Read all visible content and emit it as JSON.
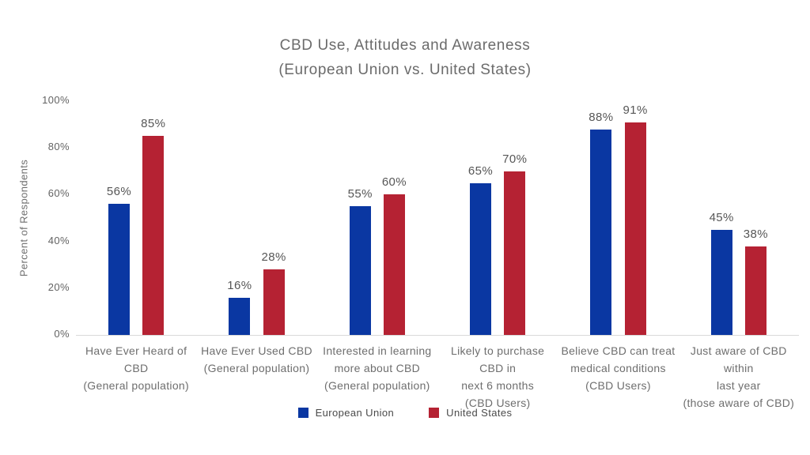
{
  "chart": {
    "title_line1": "CBD Use, Attitudes and Awareness",
    "title_line2": "(European Union vs. United States)",
    "y_axis_title": "Percent of Respondents"
  },
  "colors": {
    "eu_blue": "#0a37a2",
    "us_red": "#b52233",
    "axis_text": "#636363",
    "baseline": "#d9d9d9"
  },
  "chart_data": {
    "type": "bar",
    "title": "CBD Use, Attitudes and Awareness (European Union vs. United States)",
    "xlabel": "",
    "ylabel": "Percent of Respondents",
    "ylim": [
      0,
      100
    ],
    "grid": false,
    "legend_position": "bottom",
    "y_ticks": [
      "0%",
      "20%",
      "40%",
      "60%",
      "80%",
      "100%"
    ],
    "value_suffix": "%",
    "categories": [
      [
        "Have Ever Heard of CBD",
        "(General population)"
      ],
      [
        "Have Ever Used CBD",
        "(General population)"
      ],
      [
        "Interested in learning",
        "more about CBD",
        "(General population)"
      ],
      [
        "Likely to purchase CBD in",
        "next 6 months",
        "(CBD Users)"
      ],
      [
        "Believe CBD can treat",
        "medical conditions",
        "(CBD Users)"
      ],
      [
        "Just aware of CBD within",
        "last year",
        "(those aware of CBD)"
      ]
    ],
    "series": [
      {
        "name": "European Union",
        "color": "#0a37a2",
        "values": [
          56,
          16,
          55,
          65,
          88,
          45
        ]
      },
      {
        "name": "United States",
        "color": "#b52233",
        "values": [
          85,
          28,
          60,
          70,
          91,
          38
        ]
      }
    ]
  }
}
